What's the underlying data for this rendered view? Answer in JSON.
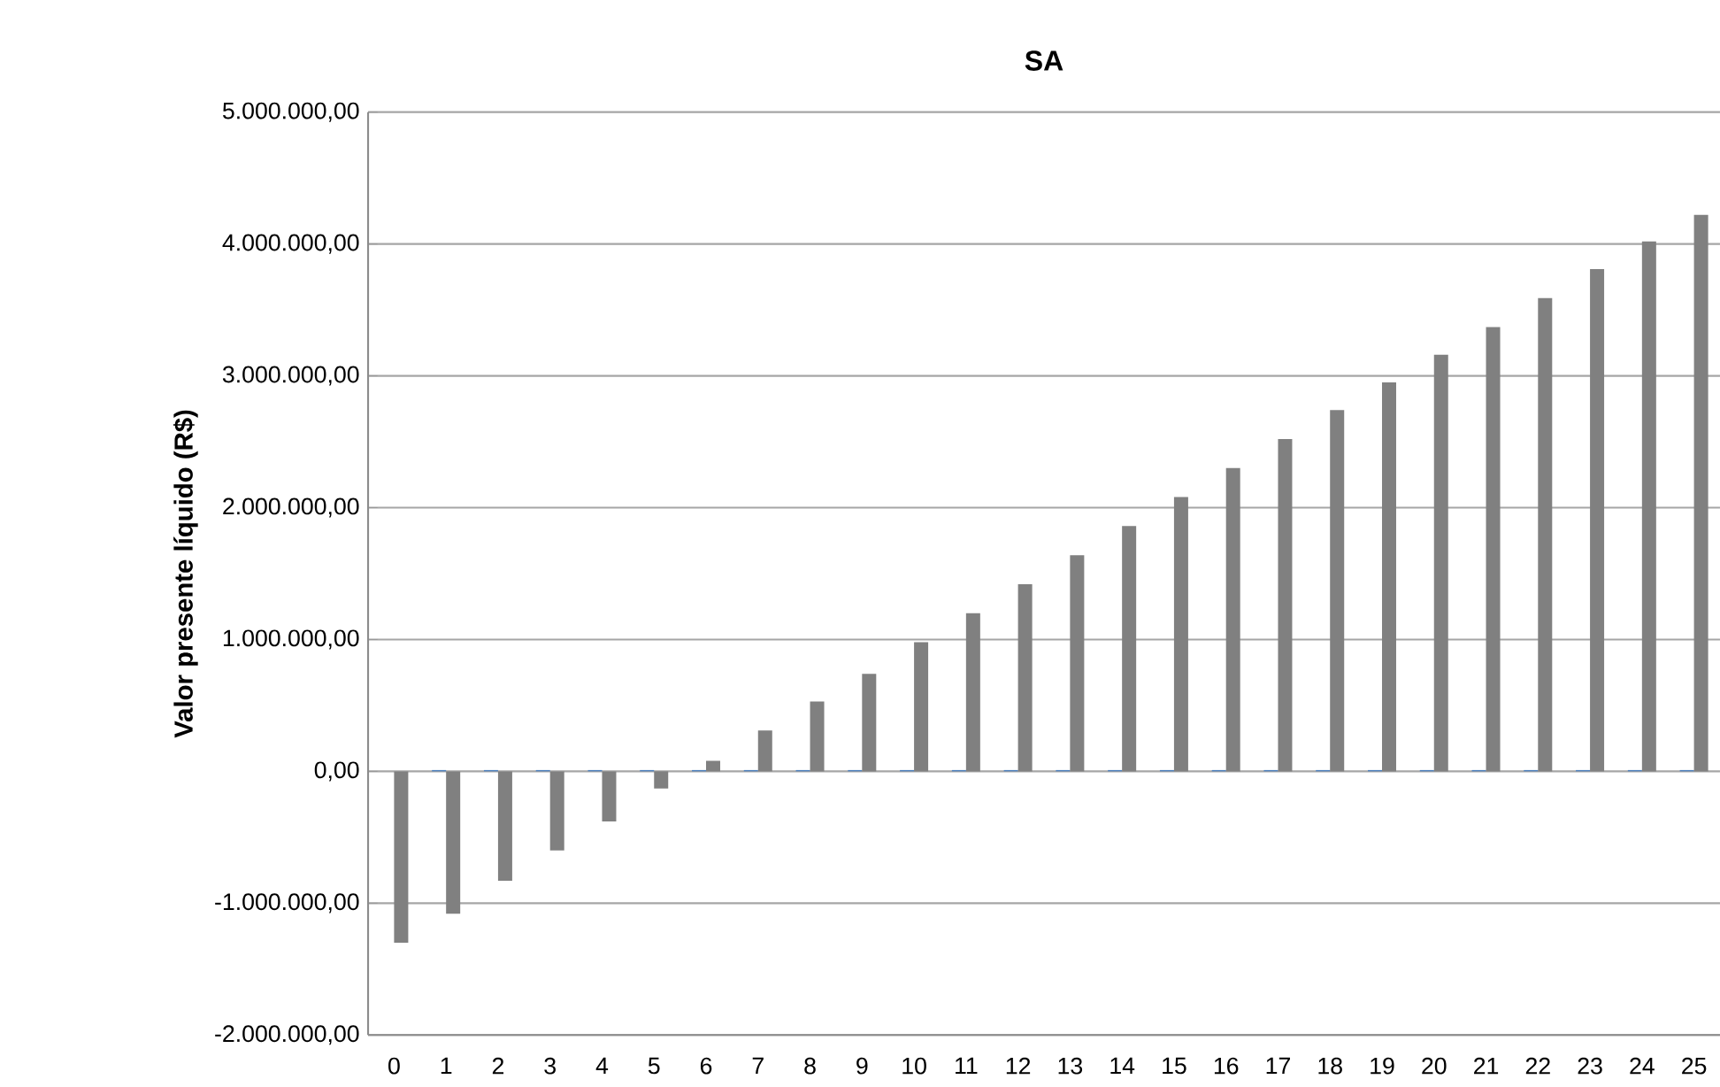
{
  "chart_data": {
    "type": "bar",
    "title": "SA",
    "ylabel": "Valor presente líquido (R$)",
    "categories": [
      "0",
      "1",
      "2",
      "3",
      "4",
      "5",
      "6",
      "7",
      "8",
      "9",
      "10",
      "11",
      "12",
      "13",
      "14",
      "15",
      "16",
      "17",
      "18",
      "19",
      "20",
      "21",
      "22",
      "23",
      "24",
      "25"
    ],
    "series": [
      {
        "color": "#4f81bd",
        "values": [
          null,
          10000,
          10000,
          10000,
          10000,
          10000,
          10000,
          10000,
          10000,
          10000,
          10000,
          10000,
          10000,
          10000,
          10000,
          10000,
          10000,
          10000,
          10000,
          10000,
          10000,
          10000,
          10000,
          10000,
          10000,
          10000
        ]
      },
      {
        "color": "#808080",
        "values": [
          -1300000,
          -1080000,
          -830000,
          -600000,
          -380000,
          -130000,
          80000,
          310000,
          530000,
          740000,
          980000,
          1200000,
          1420000,
          1640000,
          1860000,
          2080000,
          2300000,
          2520000,
          2740000,
          2950000,
          3160000,
          3370000,
          3590000,
          3810000,
          4020000,
          4220000
        ]
      }
    ],
    "ylim": [
      -2000000,
      5000000
    ],
    "yticks": [
      {
        "value": -2000000,
        "label": "-2.000.000,00"
      },
      {
        "value": -1000000,
        "label": "-1.000.000,00"
      },
      {
        "value": 0,
        "label": "0,00"
      },
      {
        "value": 1000000,
        "label": "1.000.000,00"
      },
      {
        "value": 2000000,
        "label": "2.000.000,00"
      },
      {
        "value": 3000000,
        "label": "3.000.000,00"
      },
      {
        "value": 4000000,
        "label": "4.000.000,00"
      },
      {
        "value": 5000000,
        "label": "5.000.000,00"
      }
    ],
    "grid": "y"
  }
}
